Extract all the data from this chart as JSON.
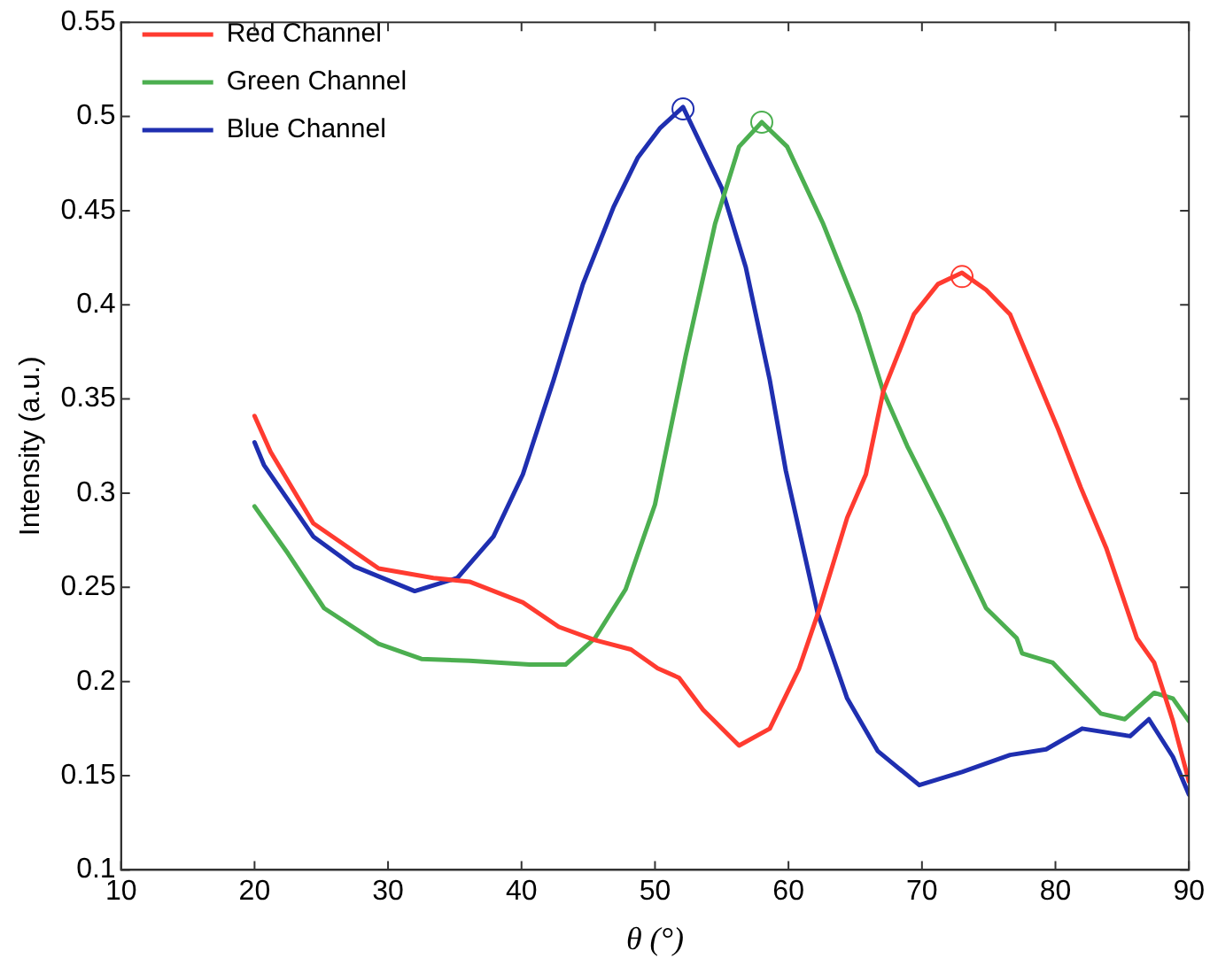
{
  "chart_data": {
    "type": "line",
    "xlabel": "θ (°)",
    "ylabel": "Intensity (a.u.)",
    "xlim": [
      10,
      90
    ],
    "xticks": [
      10,
      20,
      30,
      40,
      50,
      60,
      70,
      80,
      90
    ],
    "ylim": [
      0.1,
      0.55
    ],
    "yticks": [
      0.1,
      0.15,
      0.2,
      0.25,
      0.3,
      0.35,
      0.4,
      0.45,
      0.5,
      0.55
    ],
    "grid": false,
    "legend": "top left",
    "marker": "none",
    "line_style": "solid",
    "series": [
      {
        "name": "Red Channel",
        "color": "#ff3b30",
        "x": [
          20,
          21.2,
          24.4,
          29.3,
          33.4,
          36.1,
          40.1,
          42.8,
          45.5,
          48.2,
          50.2,
          51.8,
          53.6,
          56.3,
          58.6,
          60.8,
          62.2,
          64.4,
          65.8,
          67.1,
          69.4,
          71.2,
          73.0,
          74.8,
          76.6,
          77.9,
          80.2,
          81.9,
          83.8,
          86.1,
          87.4,
          88.8,
          90
        ],
        "values": [
          0.341,
          0.322,
          0.284,
          0.26,
          0.255,
          0.253,
          0.242,
          0.229,
          0.222,
          0.217,
          0.207,
          0.202,
          0.185,
          0.166,
          0.175,
          0.207,
          0.236,
          0.287,
          0.31,
          0.354,
          0.395,
          0.411,
          0.417,
          0.408,
          0.395,
          0.373,
          0.334,
          0.303,
          0.271,
          0.223,
          0.21,
          0.179,
          0.147
        ]
      },
      {
        "name": "Green Channel",
        "color": "#4caf50",
        "x": [
          20,
          22.5,
          25.2,
          29.3,
          32.5,
          36.1,
          40.6,
          43.3,
          45.5,
          47.8,
          50,
          52.3,
          54.5,
          56.3,
          58.0,
          59.9,
          62.6,
          65.3,
          67.1,
          68.9,
          71.6,
          74.8,
          77.1,
          77.5,
          79.8,
          83.4,
          85.2,
          87.4,
          88.8,
          90
        ],
        "values": [
          0.293,
          0.268,
          0.239,
          0.22,
          0.212,
          0.211,
          0.209,
          0.209,
          0.223,
          0.249,
          0.294,
          0.373,
          0.443,
          0.484,
          0.497,
          0.484,
          0.443,
          0.395,
          0.354,
          0.325,
          0.287,
          0.239,
          0.223,
          0.215,
          0.21,
          0.183,
          0.18,
          0.194,
          0.191,
          0.179
        ]
      },
      {
        "name": "Blue Channel",
        "color": "#1f2fb0",
        "x": [
          20,
          20.7,
          24.4,
          27.5,
          32.0,
          35.2,
          37.9,
          40.1,
          42.4,
          44.6,
          46.9,
          48.7,
          50.4,
          52.1,
          55.0,
          56.8,
          58.6,
          59.8,
          62.2,
          64.4,
          66.7,
          69.8,
          73.0,
          76.6,
          79.3,
          82.0,
          85.6,
          87.0,
          88.8,
          90
        ],
        "values": [
          0.327,
          0.315,
          0.277,
          0.261,
          0.248,
          0.255,
          0.277,
          0.31,
          0.36,
          0.411,
          0.452,
          0.478,
          0.494,
          0.505,
          0.462,
          0.42,
          0.36,
          0.312,
          0.236,
          0.191,
          0.163,
          0.145,
          0.152,
          0.161,
          0.164,
          0.175,
          0.171,
          0.18,
          0.16,
          0.14
        ]
      },
      {
        "type": "scatter",
        "marker": "circle",
        "color": "#ff3b30",
        "x": [
          73.0
        ],
        "values": [
          0.415
        ]
      },
      {
        "type": "scatter",
        "marker": "circle",
        "color": "#4caf50",
        "x": [
          58.0
        ],
        "values": [
          0.497
        ]
      },
      {
        "type": "scatter",
        "marker": "circle",
        "color": "#1f2fb0",
        "x": [
          52.1
        ],
        "values": [
          0.504
        ]
      }
    ]
  }
}
